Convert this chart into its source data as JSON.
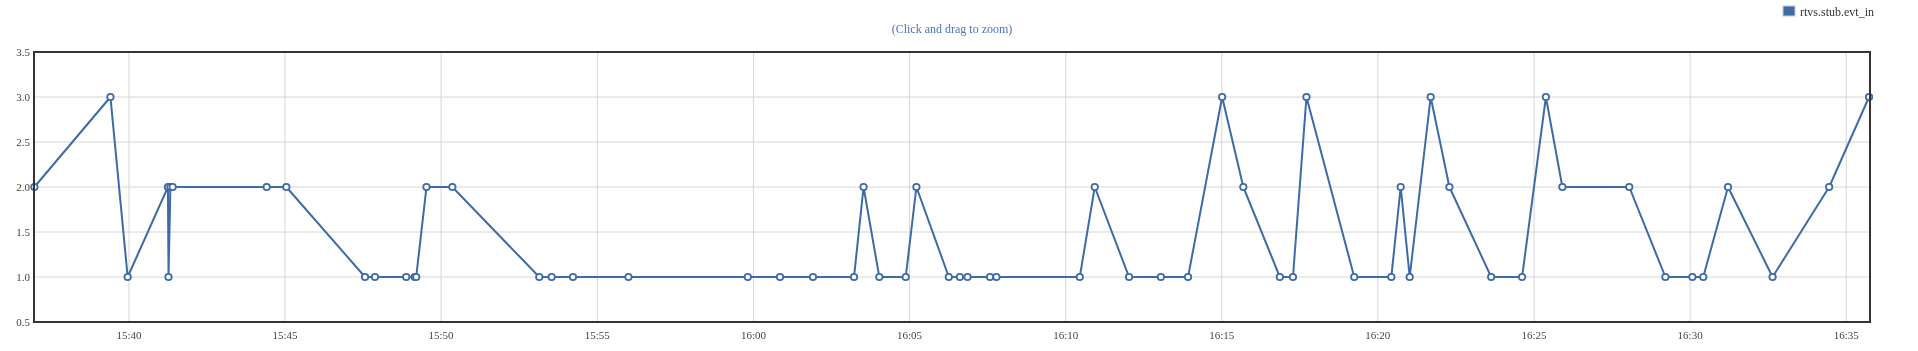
{
  "chart_data": {
    "type": "line",
    "subtitle": "(Click and drag to zoom)",
    "x": [
      15.6162,
      15.6568,
      15.666,
      15.6875,
      15.6878,
      15.6888,
      15.69,
      15.7402,
      15.7507,
      15.7927,
      15.798,
      15.8147,
      15.8192,
      15.82,
      15.8255,
      15.8393,
      15.8857,
      15.8923,
      15.9037,
      15.9333,
      15.997,
      16.0142,
      16.0318,
      16.0537,
      16.0588,
      16.0672,
      16.0813,
      16.087,
      16.1043,
      16.1102,
      16.1143,
      16.1263,
      16.1297,
      16.1742,
      16.1822,
      16.2005,
      16.2175,
      16.232,
      16.2502,
      16.2615,
      16.281,
      16.288,
      16.2952,
      16.3207,
      16.3405,
      16.3455,
      16.3503,
      16.3615,
      16.3715,
      16.3938,
      16.4103,
      16.423,
      16.4318,
      16.4675,
      16.4868,
      16.5012,
      16.507,
      16.5202,
      16.544,
      16.5742,
      16.5955
    ],
    "series": [
      {
        "name": "rtvs.stub.evt_in",
        "color": "#3d6ba8",
        "values": [
          2,
          3,
          1,
          2,
          1,
          2,
          2,
          2,
          2,
          1,
          1,
          1,
          1,
          1,
          2,
          2,
          1,
          1,
          1,
          1,
          1,
          1,
          1,
          1,
          2,
          1,
          1,
          2,
          1,
          1,
          1,
          1,
          1,
          1,
          2,
          1,
          1,
          1,
          3,
          2,
          1,
          1,
          3,
          1,
          1,
          2,
          1,
          3,
          2,
          1,
          1,
          3,
          2,
          2,
          1,
          1,
          1,
          2,
          1,
          2,
          3
        ]
      }
    ],
    "xlim": [
      15.616,
      16.596
    ],
    "xticks": [
      {
        "value": 15.6667,
        "label": "15:40"
      },
      {
        "value": 15.75,
        "label": "15:45"
      },
      {
        "value": 15.8333,
        "label": "15:50"
      },
      {
        "value": 15.9167,
        "label": "15:55"
      },
      {
        "value": 16,
        "label": "16:00"
      },
      {
        "value": 16.0833,
        "label": "16:05"
      },
      {
        "value": 16.1667,
        "label": "16:10"
      },
      {
        "value": 16.25,
        "label": "16:15"
      },
      {
        "value": 16.3333,
        "label": "16:20"
      },
      {
        "value": 16.4167,
        "label": "16:25"
      },
      {
        "value": 16.5,
        "label": "16:30"
      },
      {
        "value": 16.5833,
        "label": "16:35"
      }
    ],
    "ylim": [
      0.5,
      3.5
    ],
    "yticks": [
      {
        "value": 0.5,
        "label": "0.5"
      },
      {
        "value": 1,
        "label": "1.0"
      },
      {
        "value": 1.5,
        "label": "1.5"
      },
      {
        "value": 2,
        "label": "2.0"
      },
      {
        "value": 2.5,
        "label": "2.5"
      },
      {
        "value": 3,
        "label": "3.0"
      },
      {
        "value": 3.5,
        "label": "3.5"
      }
    ],
    "grid": true,
    "legend": "top right",
    "marker": "circle",
    "line_style": "solid"
  }
}
